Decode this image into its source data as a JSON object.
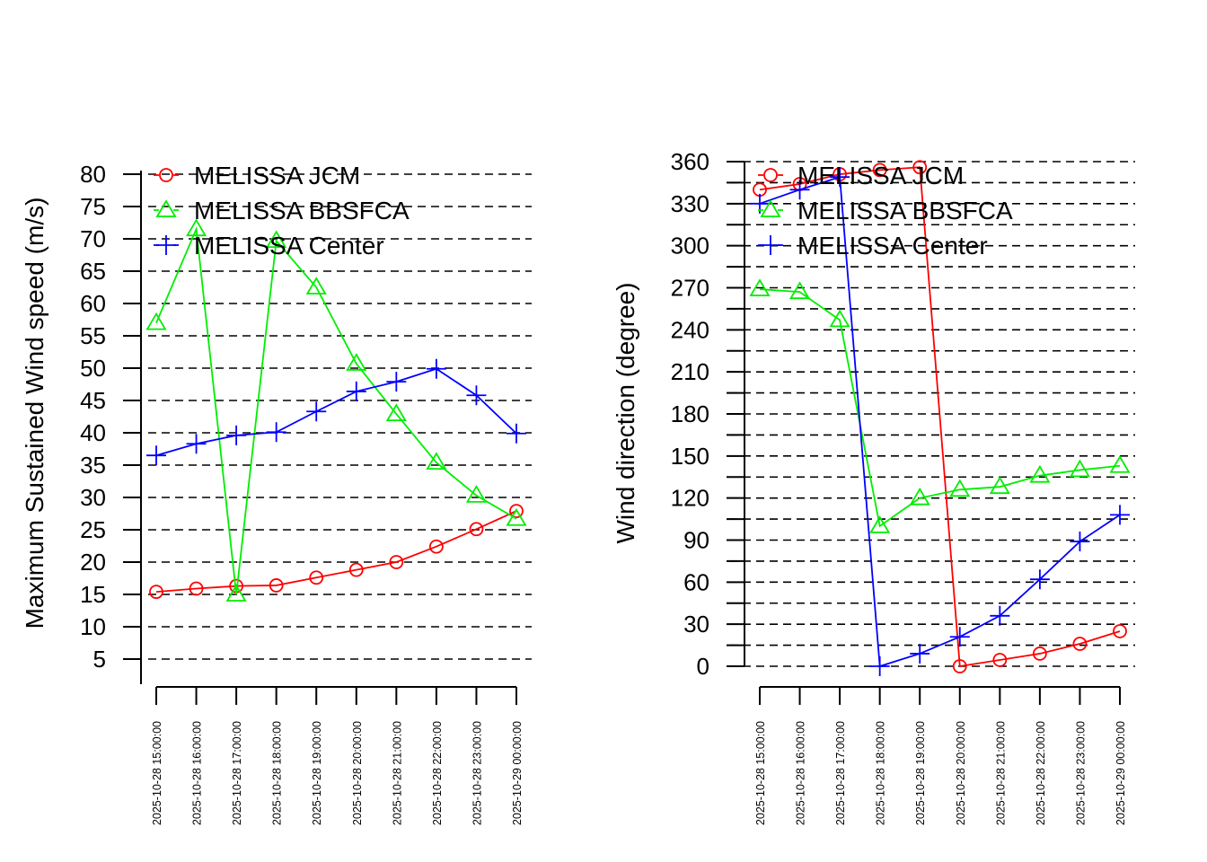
{
  "chart_data": [
    {
      "type": "line",
      "title": "",
      "xlabel": "",
      "ylabel": "Maximum Sustained Wind speed (m/s)",
      "ylim": [
        5,
        80
      ],
      "yticks": [
        5,
        10,
        15,
        20,
        25,
        30,
        35,
        40,
        45,
        50,
        55,
        60,
        65,
        70,
        75,
        80
      ],
      "grid_lines": [
        5,
        10,
        15,
        20,
        25,
        30,
        35,
        40,
        45,
        50,
        55,
        60,
        65,
        70,
        75,
        80
      ],
      "grid": true,
      "legend_position": "top-left",
      "x": [
        "2025-10-28 15:00:00",
        "2025-10-28 16:00:00",
        "2025-10-28 17:00:00",
        "2025-10-28 18:00:00",
        "2025-10-28 19:00:00",
        "2025-10-28 20:00:00",
        "2025-10-28 21:00:00",
        "2025-10-28 22:00:00",
        "2025-10-28 23:00:00",
        "2025-10-29 00:00:00"
      ],
      "series": [
        {
          "name": "MELISSA JCM",
          "color": "#ff0000",
          "marker": "circle",
          "values": [
            15.4,
            15.9,
            16.3,
            16.4,
            17.6,
            18.8,
            20.0,
            22.4,
            25.1,
            27.9
          ]
        },
        {
          "name": "MELISSA BBSFCA",
          "color": "#00ee00",
          "marker": "triangle",
          "values": [
            57.0,
            71.5,
            15.0,
            69.7,
            62.5,
            50.7,
            42.9,
            35.4,
            30.3,
            26.7
          ]
        },
        {
          "name": "MELISSA Center",
          "color": "#0000ff",
          "marker": "plus",
          "values": [
            36.5,
            38.3,
            39.6,
            40.1,
            43.3,
            46.4,
            47.9,
            49.9,
            45.8,
            39.9
          ]
        }
      ]
    },
    {
      "type": "line",
      "title": "",
      "xlabel": "",
      "ylabel": "Wind direction (degree)",
      "ylim": [
        0,
        360
      ],
      "yticks": [
        0,
        30,
        60,
        90,
        120,
        150,
        180,
        210,
        240,
        270,
        300,
        330,
        360
      ],
      "grid_lines": [
        0,
        15,
        30,
        45,
        60,
        75,
        90,
        105,
        120,
        135,
        150,
        165,
        180,
        195,
        210,
        225,
        240,
        255,
        270,
        285,
        300,
        315,
        330,
        345,
        360
      ],
      "grid": true,
      "legend_position": "top-left",
      "x": [
        "2025-10-28 15:00:00",
        "2025-10-28 16:00:00",
        "2025-10-28 17:00:00",
        "2025-10-28 18:00:00",
        "2025-10-28 19:00:00",
        "2025-10-28 20:00:00",
        "2025-10-28 21:00:00",
        "2025-10-28 22:00:00",
        "2025-10-28 23:00:00",
        "2025-10-29 00:00:00"
      ],
      "series": [
        {
          "name": "MELISSA JCM",
          "color": "#ff0000",
          "marker": "circle",
          "values": [
            340,
            344,
            351,
            354,
            356,
            0,
            4.5,
            9,
            16,
            25
          ]
        },
        {
          "name": "MELISSA BBSFCA",
          "color": "#00ee00",
          "marker": "triangle",
          "values": [
            269,
            267,
            247,
            100,
            120,
            126,
            128,
            136,
            140,
            143
          ]
        },
        {
          "name": "MELISSA Center",
          "color": "#0000ff",
          "marker": "plus",
          "values": [
            330,
            340,
            349,
            0,
            9,
            21,
            36,
            62,
            89,
            108
          ]
        }
      ]
    }
  ]
}
